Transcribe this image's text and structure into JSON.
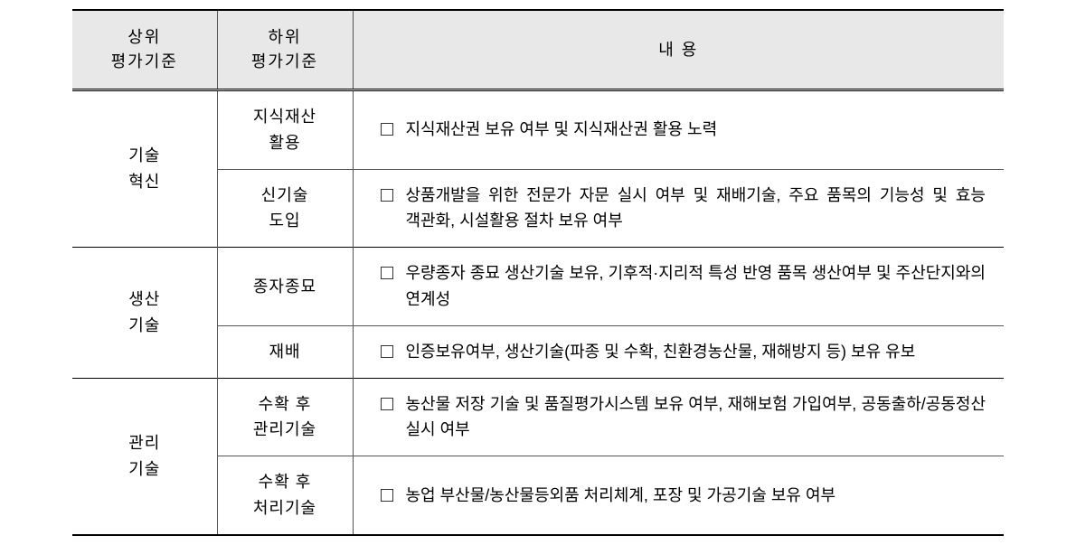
{
  "table": {
    "type": "table",
    "background_color": "#ffffff",
    "header_bg": "#e8e8e8",
    "border_color": "#555555",
    "border_color_strong": "#000000",
    "fontsize": 18,
    "columns": {
      "upper": {
        "label": "상위\n평가기준",
        "width": 160,
        "align": "center"
      },
      "lower": {
        "label": "하위\n평가기준",
        "width": 150,
        "align": "center"
      },
      "content": {
        "label": "내    용",
        "width": "auto",
        "align": "left"
      }
    },
    "groups": [
      {
        "upper": "기술\n혁신",
        "rows": [
          {
            "lower": "지식재산\n활용",
            "content": "지식재산권 보유 여부 및 지식재산권 활용 노력"
          },
          {
            "lower": "신기술\n도입",
            "content": "상품개발을 위한 전문가 자문 실시 여부 및 재배기술, 주요 품목의 기능성 및 효능 객관화, 시설활용 절차 보유 여부"
          }
        ]
      },
      {
        "upper": "생산\n기술",
        "rows": [
          {
            "lower": "종자종묘",
            "content": "우량종자 종묘 생산기술 보유, 기후적·지리적 특성 반영 품목 생산여부 및 주산단지와의 연계성"
          },
          {
            "lower": "재배",
            "content": "인증보유여부, 생산기술(파종 및 수확, 친환경농산물, 재해방지 등) 보유 유보"
          }
        ]
      },
      {
        "upper": "관리\n기술",
        "rows": [
          {
            "lower": "수확 후\n관리기술",
            "content": "농산물 저장 기술 및 품질평가시스템 보유 여부, 재해보험 가입여부, 공동출하/공동정산 실시 여부"
          },
          {
            "lower": "수확 후\n처리기술",
            "content": "농업 부산물/농산물등외품 처리체계, 포장 및 가공기술 보유 여부"
          }
        ]
      }
    ]
  }
}
